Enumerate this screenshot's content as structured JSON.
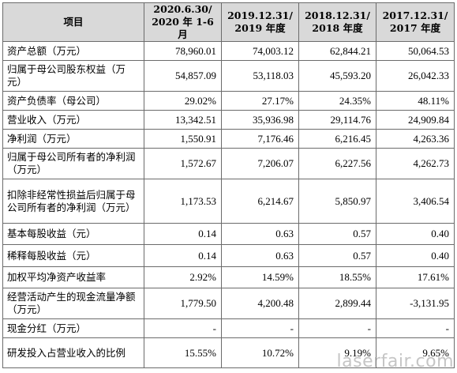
{
  "header": {
    "item": "项目",
    "periods": [
      {
        "l1": "2020.6.30/",
        "l2": "2020 年 1-6 月"
      },
      {
        "l1": "2019.12.31/",
        "l2": "2019 年度"
      },
      {
        "l1": "2018.12.31/",
        "l2": "2018 年度"
      },
      {
        "l1": "2017.12.31/",
        "l2": "2017 年度"
      }
    ]
  },
  "rows": [
    {
      "label": "资产总额（万元）",
      "values": [
        "78,960.01",
        "74,003.12",
        "62,844.21",
        "50,064.53"
      ]
    },
    {
      "label": "归属于母公司股东权益（万元）",
      "values": [
        "54,857.09",
        "53,118.03",
        "45,593.20",
        "26,042.33"
      ]
    },
    {
      "label": "资产负债率（母公司）",
      "values": [
        "29.02%",
        "27.17%",
        "24.35%",
        "48.11%"
      ]
    },
    {
      "label": "营业收入（万元）",
      "values": [
        "13,342.51",
        "35,936.98",
        "29,114.76",
        "24,909.84"
      ]
    },
    {
      "label": "净利润（万元）",
      "values": [
        "1,550.91",
        "7,176.46",
        "6,216.45",
        "4,263.36"
      ]
    },
    {
      "label": "归属于母公司所有者的净利润（万元）",
      "values": [
        "1,572.67",
        "7,206.07",
        "6,227.56",
        "4,262.73"
      ]
    },
    {
      "label": "扣除非经常性损益后归属于母公司所有者的净利润（万元）",
      "values": [
        "1,173.53",
        "6,214.67",
        "5,850.97",
        "3,406.54"
      ]
    },
    {
      "label": "基本每股收益（元）",
      "values": [
        "0.14",
        "0.63",
        "0.57",
        "0.40"
      ]
    },
    {
      "label": "稀释每股收益（元）",
      "values": [
        "0.14",
        "0.63",
        "0.57",
        "0.40"
      ]
    },
    {
      "label": "加权平均净资产收益率",
      "values": [
        "2.92%",
        "14.59%",
        "18.55%",
        "17.61%"
      ]
    },
    {
      "label": "经营活动产生的现金流量净额（万元）",
      "values": [
        "1,779.50",
        "4,200.48",
        "2,899.44",
        "-3,131.95"
      ]
    },
    {
      "label": "现金分红（万元）",
      "values": [
        "-",
        "-",
        "-",
        "-"
      ]
    },
    {
      "label": "研发投入占营业收入的比例",
      "values": [
        "15.55%",
        "10.72%",
        "9.19%",
        "9.65%"
      ]
    }
  ],
  "watermark": "laserfair.com"
}
